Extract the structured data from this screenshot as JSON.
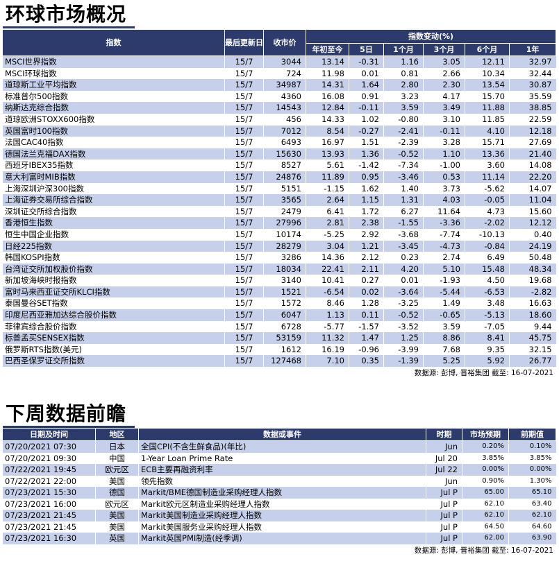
{
  "section1": {
    "title": "环球市场概况",
    "headers": {
      "index": "指数",
      "last_update": "最后更新日",
      "close": "收市价",
      "change_group": "指数变动(%)",
      "ytd": "年初至今",
      "d5": "5日",
      "m1": "1个月",
      "m3": "3个月",
      "m6": "6个月",
      "y1": "1年"
    },
    "rows": [
      [
        "MSCI世界指数",
        "15/7",
        "3044",
        "13.14",
        "-0.31",
        "1.16",
        "3.05",
        "12.11",
        "32.97"
      ],
      [
        "MSCI环球指数",
        "15/7",
        "724",
        "11.98",
        "0.01",
        "0.81",
        "2.66",
        "10.34",
        "32.44"
      ],
      [
        "道琼斯工业平均指数",
        "15/7",
        "34987",
        "14.31",
        "1.64",
        "2.80",
        "2.30",
        "13.54",
        "30.87"
      ],
      [
        "标准普尔500指数",
        "15/7",
        "4360",
        "16.08",
        "0.91",
        "3.23",
        "4.17",
        "15.70",
        "35.59"
      ],
      [
        "纳斯达克综合指数",
        "15/7",
        "14543",
        "12.84",
        "-0.11",
        "3.59",
        "3.49",
        "11.88",
        "38.85"
      ],
      [
        "道琼欧洲STOXX600指数",
        "15/7",
        "456",
        "14.33",
        "1.02",
        "-0.80",
        "3.10",
        "11.85",
        "22.59"
      ],
      [
        "英国富时100指数",
        "15/7",
        "7012",
        "8.54",
        "-0.27",
        "-2.41",
        "-0.11",
        "4.10",
        "12.18"
      ],
      [
        "法国CAC40指数",
        "15/7",
        "6493",
        "16.97",
        "1.51",
        "-2.39",
        "3.28",
        "15.71",
        "27.69"
      ],
      [
        "德国法兰克福DAX指数",
        "15/7",
        "15630",
        "13.93",
        "1.36",
        "-0.52",
        "1.10",
        "13.36",
        "21.40"
      ],
      [
        "西班牙IBEX35指数",
        "15/7",
        "8527",
        "5.61",
        "-1.42",
        "-7.34",
        "-1.00",
        "3.60",
        "14.08"
      ],
      [
        "意大利富时MIB指数",
        "15/7",
        "24876",
        "11.89",
        "0.95",
        "-3.46",
        "0.53",
        "11.14",
        "22.20"
      ],
      [
        "上海深圳沪深300指数",
        "15/7",
        "5151",
        "-1.15",
        "1.62",
        "1.40",
        "3.73",
        "-5.62",
        "14.07"
      ],
      [
        "上海证券交易所综合指数",
        "15/7",
        "3565",
        "2.64",
        "1.15",
        "1.31",
        "4.03",
        "-0.05",
        "11.04"
      ],
      [
        "深圳证交所综合指数",
        "15/7",
        "2479",
        "6.41",
        "1.72",
        "6.27",
        "11.64",
        "4.73",
        "15.60"
      ],
      [
        "香港恒生指数",
        "15/7",
        "27996",
        "2.81",
        "2.38",
        "-1.55",
        "-3.36",
        "-2.02",
        "12.12"
      ],
      [
        "恒生中国企业指数",
        "15/7",
        "10174",
        "-5.25",
        "2.92",
        "-3.68",
        "-7.74",
        "-10.13",
        "0.40"
      ],
      [
        "日经225指数",
        "15/7",
        "28279",
        "3.04",
        "1.21",
        "-3.45",
        "-4.73",
        "-0.84",
        "24.19"
      ],
      [
        "韩国KOSPI指数",
        "15/7",
        "3286",
        "14.36",
        "2.12",
        "0.23",
        "2.74",
        "6.49",
        "50.48"
      ],
      [
        "台湾证交所加权股价指数",
        "15/7",
        "18034",
        "22.41",
        "2.11",
        "4.20",
        "5.10",
        "15.48",
        "48.34"
      ],
      [
        "新加坡海峡时报指数",
        "15/7",
        "3140",
        "10.41",
        "0.27",
        "0.01",
        "-1.93",
        "4.50",
        "19.68"
      ],
      [
        "富时马来西亚证交所KLCI指数",
        "15/7",
        "1521",
        "-6.54",
        "0.02",
        "-3.64",
        "-5.44",
        "-6.53",
        "-2.82"
      ],
      [
        "泰国曼谷SET指数",
        "15/7",
        "1572",
        "8.46",
        "1.28",
        "-3.25",
        "1.49",
        "3.48",
        "16.63"
      ],
      [
        "印度尼西亚雅加达综合股价指数",
        "15/7",
        "6047",
        "1.13",
        "0.11",
        "-0.52",
        "-0.65",
        "-5.13",
        "18.60"
      ],
      [
        "菲律宾综合股价指数",
        "15/7",
        "6728",
        "-5.77",
        "-1.57",
        "-3.52",
        "3.59",
        "-7.05",
        "9.44"
      ],
      [
        "标普孟买SENSEX指数",
        "15/7",
        "53159",
        "11.32",
        "1.47",
        "1.25",
        "8.86",
        "8.41",
        "45.75"
      ],
      [
        "俄罗斯RTS指数(美元)",
        "15/7",
        "1612",
        "16.19",
        "-0.96",
        "-3.99",
        "7.68",
        "9.35",
        "32.15"
      ],
      [
        "巴西圣保罗证交所指数",
        "15/7",
        "127468",
        "7.10",
        "0.35",
        "-1.39",
        "5.25",
        "5.92",
        "26.77"
      ]
    ],
    "source": "数据源: 彭博, 晋裕集团 截至: 16-07-2021"
  },
  "section2": {
    "title": "下周数据前瞻",
    "headers": {
      "datetime": "日期及时间",
      "region": "地区",
      "event": "数据或事件",
      "period": "时期",
      "forecast": "市场预期",
      "previous": "前期值"
    },
    "rows": [
      [
        "07/20/2021 07:30",
        "日本",
        "全国CPI(不含生鲜食品)(年比)",
        "Jun",
        "0.20%",
        "0.10%"
      ],
      [
        "07/20/2021 09:30",
        "中国",
        "1-Year Loan Prime Rate",
        "Jul 20",
        "3.85%",
        "3.85%"
      ],
      [
        "07/22/2021 19:45",
        "欧元区",
        "ECB主要再融资利率",
        "Jul 22",
        "0.00%",
        "0.00%"
      ],
      [
        "07/22/2021 22:00",
        "美国",
        "领先指数",
        "Jun",
        "0.90%",
        "1.30%"
      ],
      [
        "07/23/2021 15:30",
        "德国",
        "Markit/BME德国制造业采购经理人指数",
        "Jul P",
        "65.00",
        "65.10"
      ],
      [
        "07/23/2021 16:00",
        "欧元区",
        "Markit欧元区制造业采购经理人指数",
        "Jul P",
        "62.10",
        "63.40"
      ],
      [
        "07/23/2021 21:45",
        "美国",
        "Markit美国制造业采购经理人指数",
        "Jul P",
        "62.10",
        "62.10"
      ],
      [
        "07/23/2021 21:45",
        "美国",
        "Markit美国服务业采购经理人指数",
        "Jul P",
        "64.50",
        "64.60"
      ],
      [
        "07/23/2021 16:30",
        "英国",
        "Markit英国PMI制造(经季调)",
        "Jul P",
        "62.00",
        "63.90"
      ]
    ],
    "source": "数据源: 彭博, 晋裕集团 截至: 16-07-2021"
  }
}
